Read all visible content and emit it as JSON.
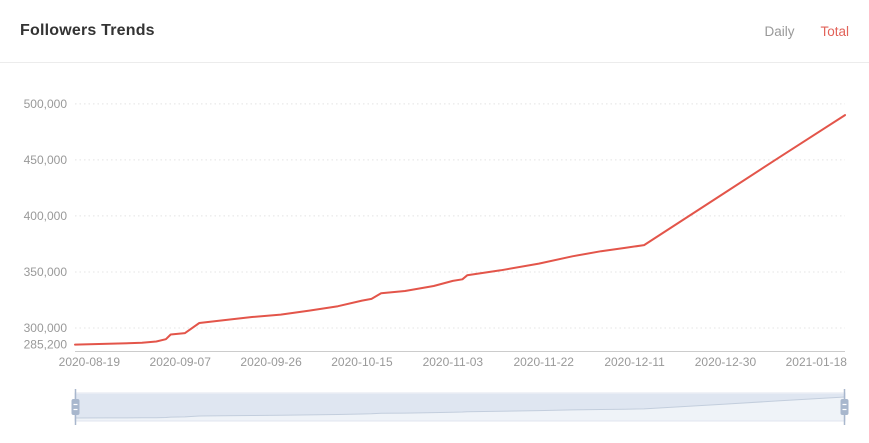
{
  "header": {
    "title": "Followers Trends",
    "tabs": [
      {
        "label": "Daily",
        "active": false
      },
      {
        "label": "Total",
        "active": true
      }
    ]
  },
  "colors": {
    "accent_line": "#e3554a",
    "tab_active": "#e2635a",
    "tab_inactive": "#999999",
    "axis_text": "#999999",
    "gridline": "#e4e4e4",
    "axis_line": "#cccccc",
    "slider_track": "#eff3f8",
    "slider_fill": "#dfe6f1",
    "slider_line": "#c3cedd",
    "slider_handle": "#a8b7cd"
  },
  "chart_data": {
    "type": "line",
    "title": "Followers Trends",
    "xlabel": "",
    "ylabel": "",
    "legend_position": "none",
    "grid": "horizontal-dotted",
    "x_tick_labels": [
      "2020-08-19",
      "2020-09-07",
      "2020-09-26",
      "2020-10-15",
      "2020-11-03",
      "2020-11-22",
      "2020-12-11",
      "2020-12-30",
      "2021-01-18"
    ],
    "y_ticks": [
      {
        "label": "285,200",
        "value": 285200
      },
      {
        "label": "300,000",
        "value": 300000
      },
      {
        "label": "350,000",
        "value": 350000
      },
      {
        "label": "400,000",
        "value": 400000
      },
      {
        "label": "450,000",
        "value": 450000
      },
      {
        "label": "500,000",
        "value": 500000
      }
    ],
    "ylim": [
      279500,
      507000
    ],
    "series": [
      {
        "name": "Total",
        "color": "#e3554a",
        "points": [
          [
            "2020-08-16",
            285200
          ],
          [
            "2020-08-23",
            285900
          ],
          [
            "2020-08-30",
            286800
          ],
          [
            "2020-09-02",
            288000
          ],
          [
            "2020-09-04",
            290000
          ],
          [
            "2020-09-05",
            294200
          ],
          [
            "2020-09-08",
            295500
          ],
          [
            "2020-09-11",
            304500
          ],
          [
            "2020-09-16",
            307000
          ],
          [
            "2020-09-22",
            309800
          ],
          [
            "2020-09-28",
            312000
          ],
          [
            "2020-10-04",
            315500
          ],
          [
            "2020-10-10",
            319500
          ],
          [
            "2020-10-15",
            324500
          ],
          [
            "2020-10-17",
            326000
          ],
          [
            "2020-10-19",
            331000
          ],
          [
            "2020-10-24",
            333000
          ],
          [
            "2020-10-30",
            337500
          ],
          [
            "2020-11-03",
            342000
          ],
          [
            "2020-11-05",
            343500
          ],
          [
            "2020-11-06",
            347000
          ],
          [
            "2020-11-13",
            351500
          ],
          [
            "2020-11-21",
            357500
          ],
          [
            "2020-11-28",
            364000
          ],
          [
            "2020-12-04",
            368500
          ],
          [
            "2020-12-09",
            371500
          ],
          [
            "2020-12-13",
            374000
          ],
          [
            "2020-12-30",
            421000
          ],
          [
            "2021-01-10",
            451500
          ],
          [
            "2021-01-24",
            490000
          ]
        ]
      }
    ],
    "datazoom_slider": {
      "start_pct": 0,
      "end_pct": 100
    }
  }
}
